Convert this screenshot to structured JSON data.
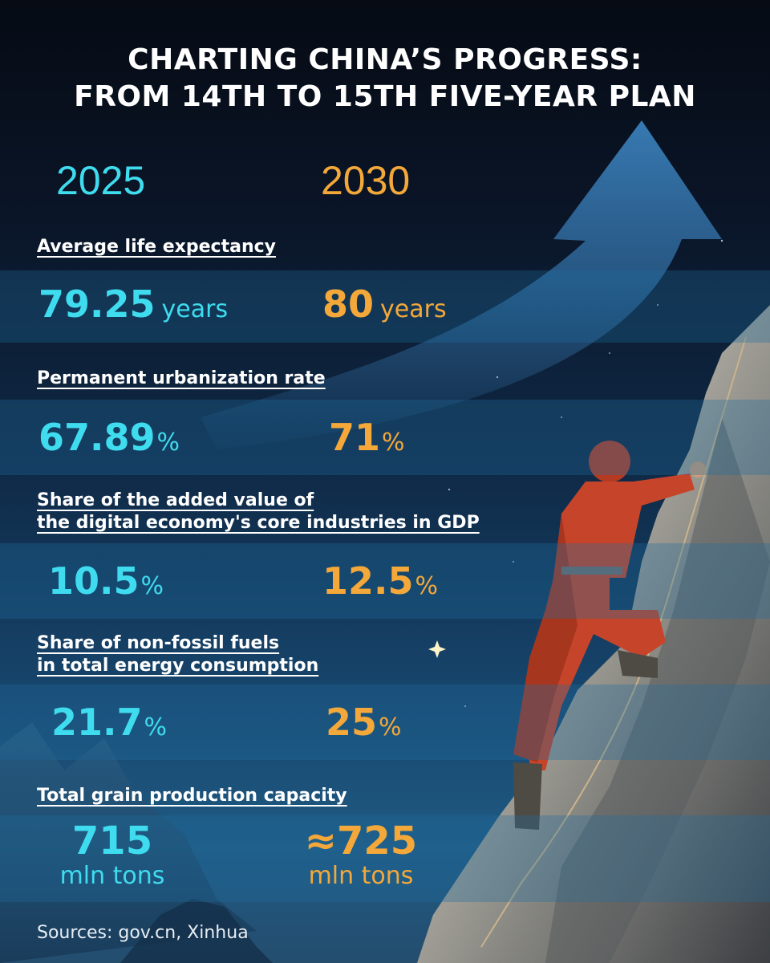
{
  "title": {
    "line1": "CHARTING CHINA’S PROGRESS:",
    "line2": "FROM 14TH TO 15TH FIVE-YEAR PLAN"
  },
  "years": {
    "current": "2025",
    "target": "2030"
  },
  "colors": {
    "current": "#3fdcef",
    "target": "#f4a83a",
    "band": "#1e6ea0"
  },
  "metrics": [
    {
      "label": "Average life expectancy",
      "current_value": "79.25",
      "current_unit": "years",
      "target_value": "80",
      "target_unit": "years"
    },
    {
      "label": "Permanent urbanization rate",
      "current_value": "67.89",
      "current_unit": "%",
      "target_value": "71",
      "target_unit": "%"
    },
    {
      "label_line1": "Share of the added value of",
      "label_line2": "the digital economy's core industries in GDP",
      "current_value": "10.5",
      "current_unit": "%",
      "target_value": "12.5",
      "target_unit": "%"
    },
    {
      "label_line1": "Share of non-fossil fuels",
      "label_line2": "in total energy consumption",
      "current_value": "21.7",
      "current_unit": "%",
      "target_value": "25",
      "target_unit": "%"
    },
    {
      "label": "Total grain production capacity",
      "current_value": "715",
      "current_unit": "mln tons",
      "target_value": "≈725",
      "target_unit": "mln tons"
    }
  ],
  "source": "Sources: gov.cn, Xinhua"
}
